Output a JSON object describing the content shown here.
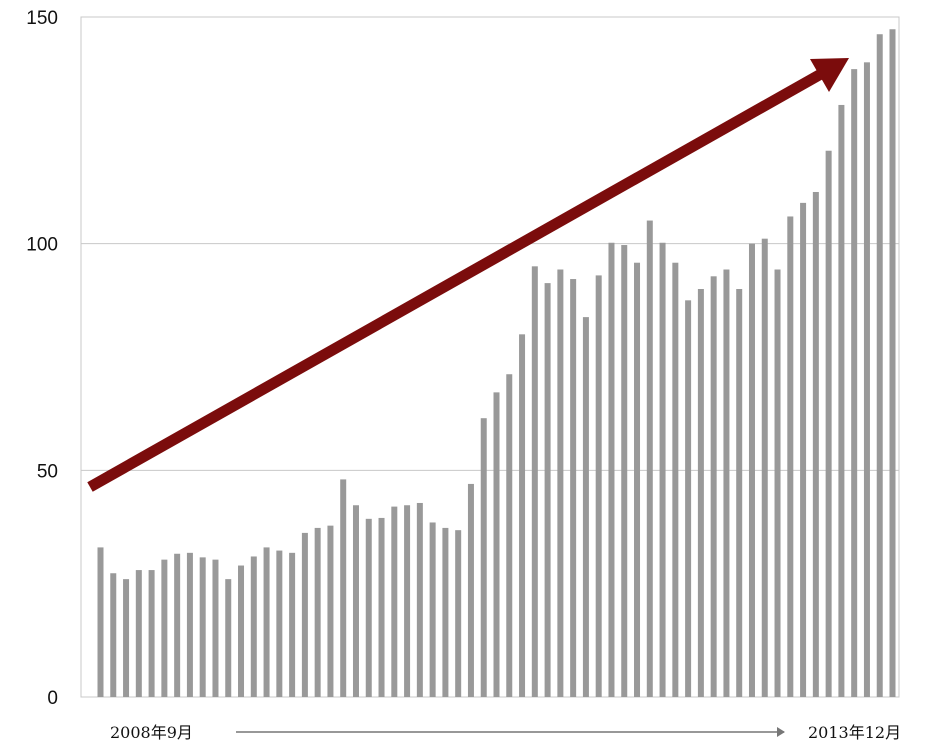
{
  "chart_data": {
    "type": "bar",
    "title": "",
    "xlabel": "",
    "ylabel": "",
    "ylim": [
      0,
      150
    ],
    "yticks": [
      0,
      50,
      100,
      150
    ],
    "grid": true,
    "legend": "none",
    "x_start_label": "2008年9月",
    "x_end_label": "2013年12月",
    "values": [
      33,
      27.3,
      26,
      28,
      28,
      30.3,
      31.6,
      31.8,
      30.8,
      30.3,
      26,
      29,
      31,
      33,
      32.3,
      31.8,
      36.2,
      37.3,
      37.8,
      48,
      42.3,
      39.3,
      39.5,
      42,
      42.3,
      42.8,
      38.5,
      37.3,
      36.8,
      47,
      61.5,
      67.2,
      71.2,
      80,
      95,
      91.3,
      94.3,
      92.2,
      83.8,
      93,
      100.2,
      99.7,
      95.8,
      105.1,
      100.2,
      95.8,
      87.5,
      90,
      92.8,
      94.3,
      90,
      100,
      101.1,
      94.3,
      106,
      109,
      111.4,
      120.5,
      130.6,
      138.5,
      140,
      146.2,
      147.3
    ],
    "colors": {
      "bars": "#999999",
      "arrow": "#7b0c0c",
      "grid": "#c8c8c8",
      "axis_arrow": "#777777"
    }
  }
}
